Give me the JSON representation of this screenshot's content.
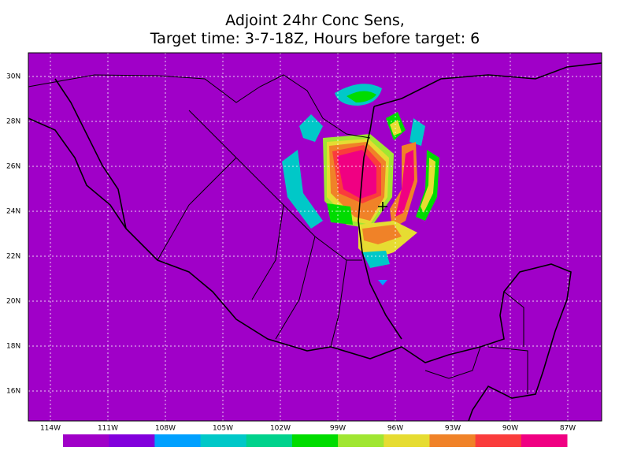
{
  "title": [
    "Adjoint 24hr Conc Sens,",
    "Target time: 3-7-18Z, Hours before target: 6"
  ],
  "map": {
    "lat_labels": [
      "30N",
      "28N",
      "26N",
      "24N",
      "22N",
      "20N",
      "18N",
      "16N"
    ],
    "lon_labels": [
      "114W",
      "111W",
      "108W",
      "105W",
      "102W",
      "99W",
      "96W",
      "93W",
      "90W",
      "87W"
    ],
    "background": "#a000c8"
  },
  "colorbar": {
    "colors": [
      "#a000c8",
      "#8200dc",
      "#00a0ff",
      "#00c8c8",
      "#00d28c",
      "#00dc00",
      "#a0e632",
      "#e6dc32",
      "#f08228",
      "#fa3c3c",
      "#f00082"
    ]
  }
}
